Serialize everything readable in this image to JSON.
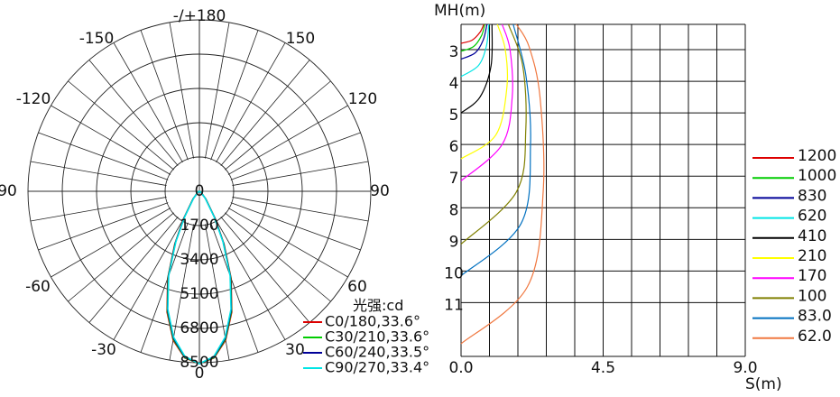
{
  "chart_data": [
    {
      "type": "polar",
      "unit_label": "光强:cd",
      "angle_labels": [
        "-/+180",
        "-150",
        "150",
        "-120",
        "120",
        "-90",
        "90",
        "-60",
        "60",
        "-30",
        "30",
        "0"
      ],
      "radial_ticks": [
        "0",
        "1700",
        "3400",
        "5100",
        "6800",
        "8500"
      ],
      "rmax": 8500,
      "legend": [
        {
          "label": "C0/180,33.6°",
          "color": "#dd0000"
        },
        {
          "label": "C30/210,33.6°",
          "color": "#00cc00"
        },
        {
          "label": "C60/240,33.5°",
          "color": "#000099"
        },
        {
          "label": "C90/270,33.4°",
          "color": "#00e5e5"
        }
      ],
      "series": [
        {
          "name": "C0/180,33.6°",
          "color": "#dd0000",
          "angles": [
            0,
            5,
            10,
            15,
            20,
            25,
            30,
            40,
            50,
            60,
            90
          ],
          "values": [
            8550,
            8300,
            7500,
            6200,
            4600,
            2900,
            1600,
            500,
            150,
            40,
            0
          ]
        },
        {
          "name": "C30/210,33.6°",
          "color": "#00cc00",
          "angles": [
            0,
            5,
            10,
            15,
            20,
            25,
            30,
            40,
            50,
            60,
            90
          ],
          "values": [
            8550,
            8280,
            7450,
            6150,
            4550,
            2850,
            1550,
            480,
            140,
            40,
            0
          ]
        },
        {
          "name": "C60/240,33.5°",
          "color": "#000099",
          "angles": [
            0,
            5,
            10,
            15,
            20,
            25,
            30,
            40,
            50,
            60,
            90
          ],
          "values": [
            8550,
            8250,
            7400,
            6100,
            4500,
            2800,
            1500,
            460,
            130,
            35,
            0
          ]
        },
        {
          "name": "C90/270,33.4°",
          "color": "#00e5e5",
          "angles": [
            0,
            5,
            10,
            15,
            20,
            25,
            30,
            40,
            50,
            60,
            90
          ],
          "values": [
            8550,
            8220,
            7350,
            6050,
            4450,
            2750,
            1450,
            440,
            120,
            30,
            0
          ]
        }
      ]
    },
    {
      "type": "isolux",
      "ylabel": "MH(m)",
      "xlabel": "S(m)",
      "xlim": [
        0,
        9
      ],
      "ylim": [
        2.2,
        12.7
      ],
      "x_ticks": [
        "0.0",
        "4.5",
        "9.0"
      ],
      "y_ticks": [
        "3",
        "4",
        "5",
        "6",
        "7",
        "8",
        "9",
        "10",
        "11"
      ],
      "legend": [
        {
          "label": "1200",
          "color": "#dd0000"
        },
        {
          "label": "1000",
          "color": "#00cc00"
        },
        {
          "label": "830",
          "color": "#000099"
        },
        {
          "label": "620",
          "color": "#00e5e5"
        },
        {
          "label": "410",
          "color": "#000000"
        },
        {
          "label": "210",
          "color": "#ffff00"
        },
        {
          "label": "170",
          "color": "#ff00ff"
        },
        {
          "label": "100",
          "color": "#808000"
        },
        {
          "label": "83.0",
          "color": "#0070c0"
        },
        {
          "label": "62.0",
          "color": "#f07840"
        }
      ],
      "series": [
        {
          "name": "1200",
          "color": "#dd0000",
          "points": [
            [
              0,
              2.8
            ],
            [
              0.35,
              2.7
            ],
            [
              0.6,
              2.45
            ],
            [
              0.72,
              2.2
            ]
          ]
        },
        {
          "name": "1000",
          "color": "#00cc00",
          "points": [
            [
              0,
              3.05
            ],
            [
              0.4,
              2.9
            ],
            [
              0.65,
              2.55
            ],
            [
              0.75,
              2.2
            ]
          ]
        },
        {
          "name": "830",
          "color": "#000099",
          "points": [
            [
              0,
              3.3
            ],
            [
              0.45,
              3.1
            ],
            [
              0.7,
              2.7
            ],
            [
              0.82,
              2.2
            ]
          ]
        },
        {
          "name": "620",
          "color": "#00e5e5",
          "points": [
            [
              0,
              3.85
            ],
            [
              0.55,
              3.5
            ],
            [
              0.8,
              2.9
            ],
            [
              0.88,
              2.2
            ]
          ]
        },
        {
          "name": "410",
          "color": "#000000",
          "points": [
            [
              0,
              5.0
            ],
            [
              0.6,
              4.5
            ],
            [
              0.95,
              3.5
            ],
            [
              0.98,
              2.2
            ]
          ]
        },
        {
          "name": "210",
          "color": "#ffff00",
          "points": [
            [
              0,
              6.45
            ],
            [
              1.1,
              5.7
            ],
            [
              1.45,
              4.2
            ],
            [
              1.4,
              3.0
            ],
            [
              1.15,
              2.2
            ]
          ]
        },
        {
          "name": "170",
          "color": "#ff00ff",
          "points": [
            [
              0,
              7.15
            ],
            [
              1.3,
              6.0
            ],
            [
              1.62,
              4.5
            ],
            [
              1.55,
              3.0
            ],
            [
              1.3,
              2.2
            ]
          ]
        },
        {
          "name": "100",
          "color": "#808000",
          "points": [
            [
              0,
              9.15
            ],
            [
              1.75,
              7.5
            ],
            [
              2.05,
              5.5
            ],
            [
              1.95,
              3.5
            ],
            [
              1.5,
              2.2
            ]
          ]
        },
        {
          "name": "83.0",
          "color": "#0070c0",
          "points": [
            [
              0,
              10.15
            ],
            [
              1.9,
              8.5
            ],
            [
              2.2,
              6.0
            ],
            [
              2.05,
              3.8
            ],
            [
              1.65,
              2.2
            ]
          ]
        },
        {
          "name": "62.0",
          "color": "#f07840",
          "points": [
            [
              0,
              12.3
            ],
            [
              2.1,
              10.5
            ],
            [
              2.6,
              7.5
            ],
            [
              2.5,
              4.5
            ],
            [
              2.15,
              2.9
            ],
            [
              1.75,
              2.2
            ]
          ]
        }
      ]
    }
  ]
}
